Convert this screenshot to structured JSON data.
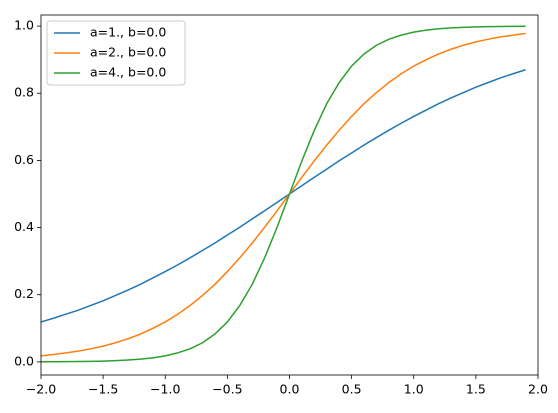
{
  "chart_data": {
    "type": "line",
    "x": [
      -2.0,
      -1.9,
      -1.8,
      -1.7,
      -1.6,
      -1.5,
      -1.4,
      -1.3,
      -1.2,
      -1.1,
      -1.0,
      -0.9,
      -0.8,
      -0.7,
      -0.6,
      -0.5,
      -0.4,
      -0.3,
      -0.2,
      -0.1,
      0.0,
      0.1,
      0.2,
      0.3,
      0.4,
      0.5,
      0.6,
      0.7,
      0.8,
      0.9,
      1.0,
      1.1,
      1.2,
      1.3,
      1.4,
      1.5,
      1.6,
      1.7,
      1.8,
      1.9
    ],
    "series": [
      {
        "name": "a=1., b=0.0",
        "color": "#1f77b4",
        "values": [
          0.119,
          0.13,
          0.142,
          0.154,
          0.168,
          0.182,
          0.198,
          0.214,
          0.231,
          0.25,
          0.269,
          0.289,
          0.31,
          0.332,
          0.354,
          0.378,
          0.401,
          0.426,
          0.45,
          0.475,
          0.5,
          0.525,
          0.55,
          0.574,
          0.599,
          0.622,
          0.646,
          0.668,
          0.69,
          0.711,
          0.731,
          0.75,
          0.769,
          0.786,
          0.802,
          0.818,
          0.832,
          0.846,
          0.858,
          0.87
        ]
      },
      {
        "name": "a=2., b=0.0",
        "color": "#ff7f0e",
        "values": [
          0.018,
          0.022,
          0.027,
          0.032,
          0.039,
          0.047,
          0.057,
          0.069,
          0.083,
          0.1,
          0.119,
          0.142,
          0.168,
          0.198,
          0.231,
          0.269,
          0.31,
          0.354,
          0.401,
          0.45,
          0.5,
          0.55,
          0.599,
          0.646,
          0.69,
          0.731,
          0.769,
          0.802,
          0.832,
          0.858,
          0.881,
          0.9,
          0.917,
          0.931,
          0.943,
          0.953,
          0.961,
          0.968,
          0.973,
          0.978
        ]
      },
      {
        "name": "a=4., b=0.0",
        "color": "#2ca02c",
        "values": [
          0.0003,
          0.0005,
          0.0007,
          0.0011,
          0.0017,
          0.0025,
          0.0037,
          0.0055,
          0.0082,
          0.012,
          0.018,
          0.027,
          0.039,
          0.057,
          0.083,
          0.119,
          0.168,
          0.231,
          0.31,
          0.401,
          0.5,
          0.599,
          0.69,
          0.769,
          0.832,
          0.881,
          0.917,
          0.943,
          0.961,
          0.973,
          0.982,
          0.988,
          0.992,
          0.9945,
          0.9963,
          0.9975,
          0.9983,
          0.9989,
          0.9993,
          0.9995
        ]
      }
    ],
    "xlim": [
      -2,
      2
    ],
    "xticks": [
      {
        "value": -2,
        "label": "−2.0"
      },
      {
        "value": -1.5,
        "label": "−1.5"
      },
      {
        "value": -1,
        "label": "−1.0"
      },
      {
        "value": -0.5,
        "label": "−0.5"
      },
      {
        "value": 0,
        "label": "0.0"
      },
      0.5,
      {
        "value": 1,
        "label": "1.0"
      },
      1.5,
      {
        "value": 2,
        "label": "2.0"
      }
    ],
    "ylim": [
      -0.039,
      1.033
    ],
    "yticks": [
      {
        "value": 0,
        "label": "0.0"
      },
      0.2,
      0.4,
      0.6,
      0.8,
      {
        "value": 1,
        "label": "1.0"
      }
    ],
    "legend": "upper left"
  }
}
